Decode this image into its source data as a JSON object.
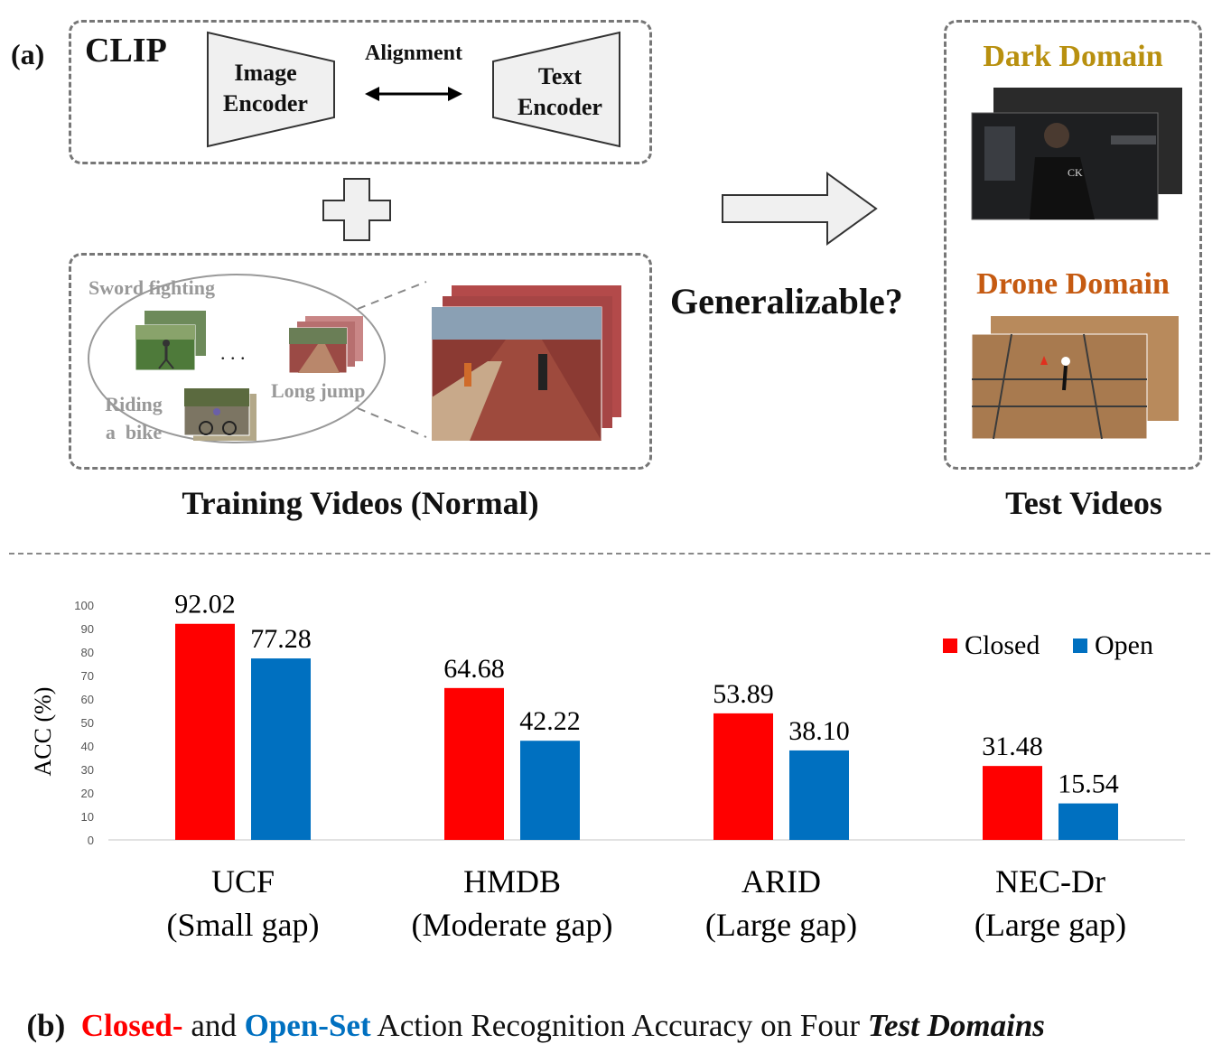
{
  "panel_a": {
    "label": "(a)",
    "clip_title": "CLIP",
    "image_encoder": [
      "Image",
      "Encoder"
    ],
    "alignment": "Alignment",
    "text_encoder": [
      "Text",
      "Encoder"
    ],
    "training_caption": "Training Videos (Normal)",
    "activities": {
      "sword": "Sword fighting",
      "dots": ". . .",
      "riding": [
        "Riding",
        "a  bike"
      ],
      "long_jump": "Long jump"
    },
    "question": "Generalizable?",
    "dark_domain": "Dark Domain",
    "drone_domain": "Drone Domain",
    "test_caption": "Test Videos",
    "colors": {
      "dark_domain": "#b8900f",
      "drone_domain": "#c55a11"
    }
  },
  "panel_b": {
    "label": "(b)",
    "caption_closed": "Closed-",
    "caption_and": " and ",
    "caption_open": "Open-Set",
    "caption_rest": " Action Recognition Accuracy on Four ",
    "caption_emph": "Test Domains",
    "colors": {
      "closed": "#ff0000",
      "open": "#0070c0"
    }
  },
  "chart_data": {
    "type": "bar",
    "categories": [
      "UCF",
      "HMDB",
      "ARID",
      "NEC-Dr"
    ],
    "category_notes": [
      "(Small gap)",
      "(Moderate gap)",
      "(Large gap)",
      "(Large gap)"
    ],
    "series": [
      {
        "name": "Closed",
        "color": "#ff0000",
        "values": [
          92.02,
          64.68,
          53.89,
          31.48
        ],
        "labels": [
          "92.02",
          "64.68",
          "53.89",
          "31.48"
        ]
      },
      {
        "name": "Open",
        "color": "#0070c0",
        "values": [
          77.28,
          42.22,
          38.1,
          15.54
        ],
        "labels": [
          "77.28",
          "42.22",
          "38.10",
          "15.54"
        ]
      }
    ],
    "ylabel": "ACC (%)",
    "ylim": [
      0,
      100
    ],
    "yticks": [
      "0",
      "10",
      "20",
      "30",
      "40",
      "50",
      "60",
      "70",
      "80",
      "90",
      "100"
    ],
    "grid": false,
    "legend": "top-right"
  }
}
